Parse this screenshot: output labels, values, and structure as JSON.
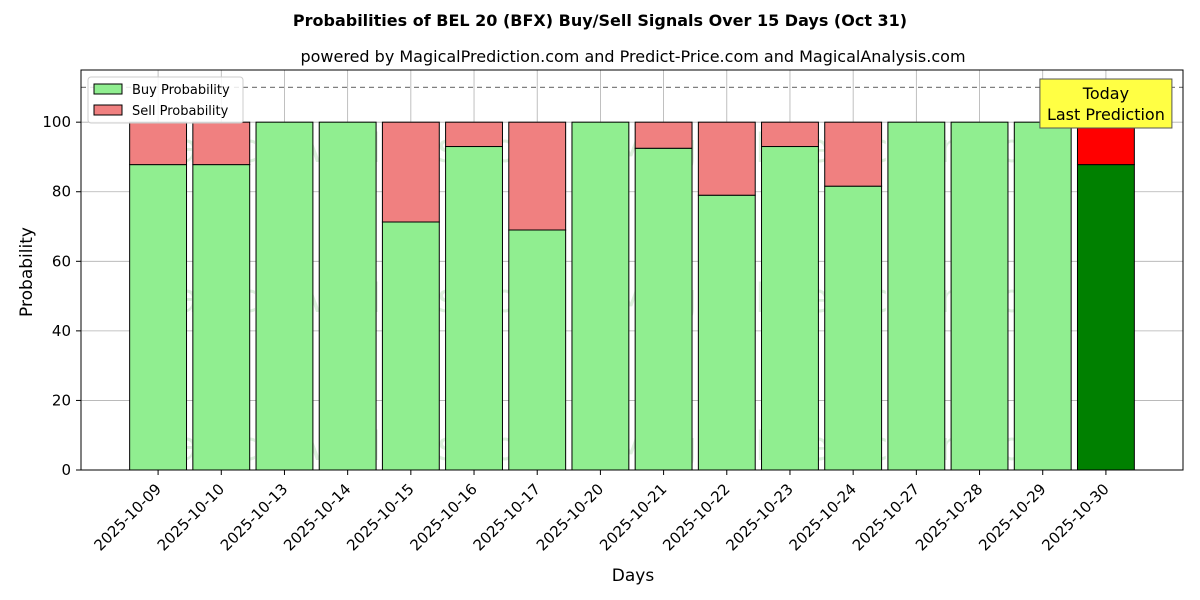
{
  "chart_data": {
    "type": "bar",
    "stacked": true,
    "title": "Probabilities of BEL 20 (BFX) Buy/Sell Signals Over 15 Days (Oct 31)",
    "subtitle": "powered by MagicalPrediction.com and Predict-Price.com and MagicalAnalysis.com",
    "xlabel": "Days",
    "ylabel": "Probability",
    "ylim": [
      0,
      115
    ],
    "yticks": [
      0,
      20,
      40,
      60,
      80,
      100
    ],
    "grid": true,
    "legend_position": "top-left",
    "reference_line": 110,
    "categories": [
      "2025-10-09",
      "2025-10-10",
      "2025-10-13",
      "2025-10-14",
      "2025-10-15",
      "2025-10-16",
      "2025-10-17",
      "2025-10-20",
      "2025-10-21",
      "2025-10-22",
      "2025-10-23",
      "2025-10-24",
      "2025-10-27",
      "2025-10-28",
      "2025-10-29",
      "2025-10-30"
    ],
    "series": [
      {
        "name": "Buy Probability",
        "color": "#90ee90",
        "values": [
          87.8,
          87.8,
          100,
          100,
          71.3,
          93.0,
          69.0,
          100,
          92.5,
          79.0,
          93.0,
          81.6,
          100,
          100,
          100,
          87.8
        ]
      },
      {
        "name": "Sell Probability",
        "color": "#f08080",
        "values": [
          12.2,
          12.2,
          0,
          0,
          28.7,
          7.0,
          31.0,
          0,
          7.5,
          21.0,
          7.0,
          18.4,
          0,
          0,
          0,
          12.2
        ]
      }
    ],
    "highlight": {
      "index": 15,
      "buy_color": "#008000",
      "sell_color": "#ff0000"
    },
    "annotation": {
      "lines": [
        "Today",
        "Last Prediction"
      ],
      "background": "#ffff44"
    },
    "watermarks": [
      "MagicalAnalysis.com",
      "MagicalPrediction.com"
    ]
  }
}
